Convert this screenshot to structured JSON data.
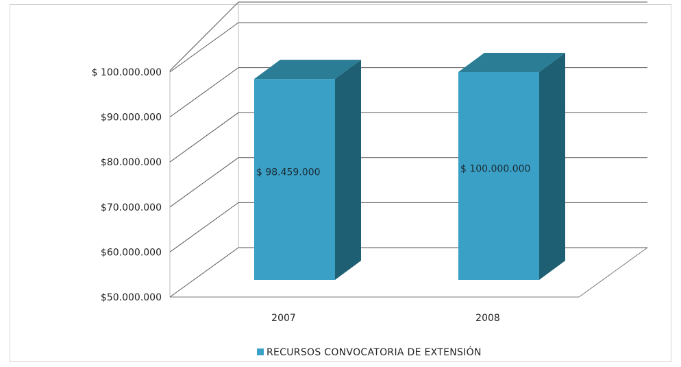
{
  "chart_data": {
    "type": "bar",
    "categories": [
      "2007",
      "2008"
    ],
    "series": [
      {
        "name": "RECURSOS CONVOCATORIA DE EXTENSIÓN",
        "values": [
          98459000,
          100000000
        ]
      }
    ],
    "data_labels": [
      "$ 98.459.000",
      "$ 100.000.000"
    ],
    "y_ticks": [
      50000000,
      60000000,
      70000000,
      80000000,
      90000000,
      100000000
    ],
    "y_tick_labels": [
      "$50.000.000",
      "$60.000.000",
      "$70.000.000",
      "$80.000.000",
      "$90.000.000",
      "$ 100.000.000"
    ],
    "ylim": [
      50000000,
      100000000
    ],
    "grid": true,
    "legend_position": "bottom",
    "three_d": true,
    "colors": {
      "bar_front": "#3aa0c6",
      "bar_side": "#1f5f73",
      "bar_top": "#2b7d96",
      "grid": "#555555",
      "floor": "#777777"
    }
  }
}
